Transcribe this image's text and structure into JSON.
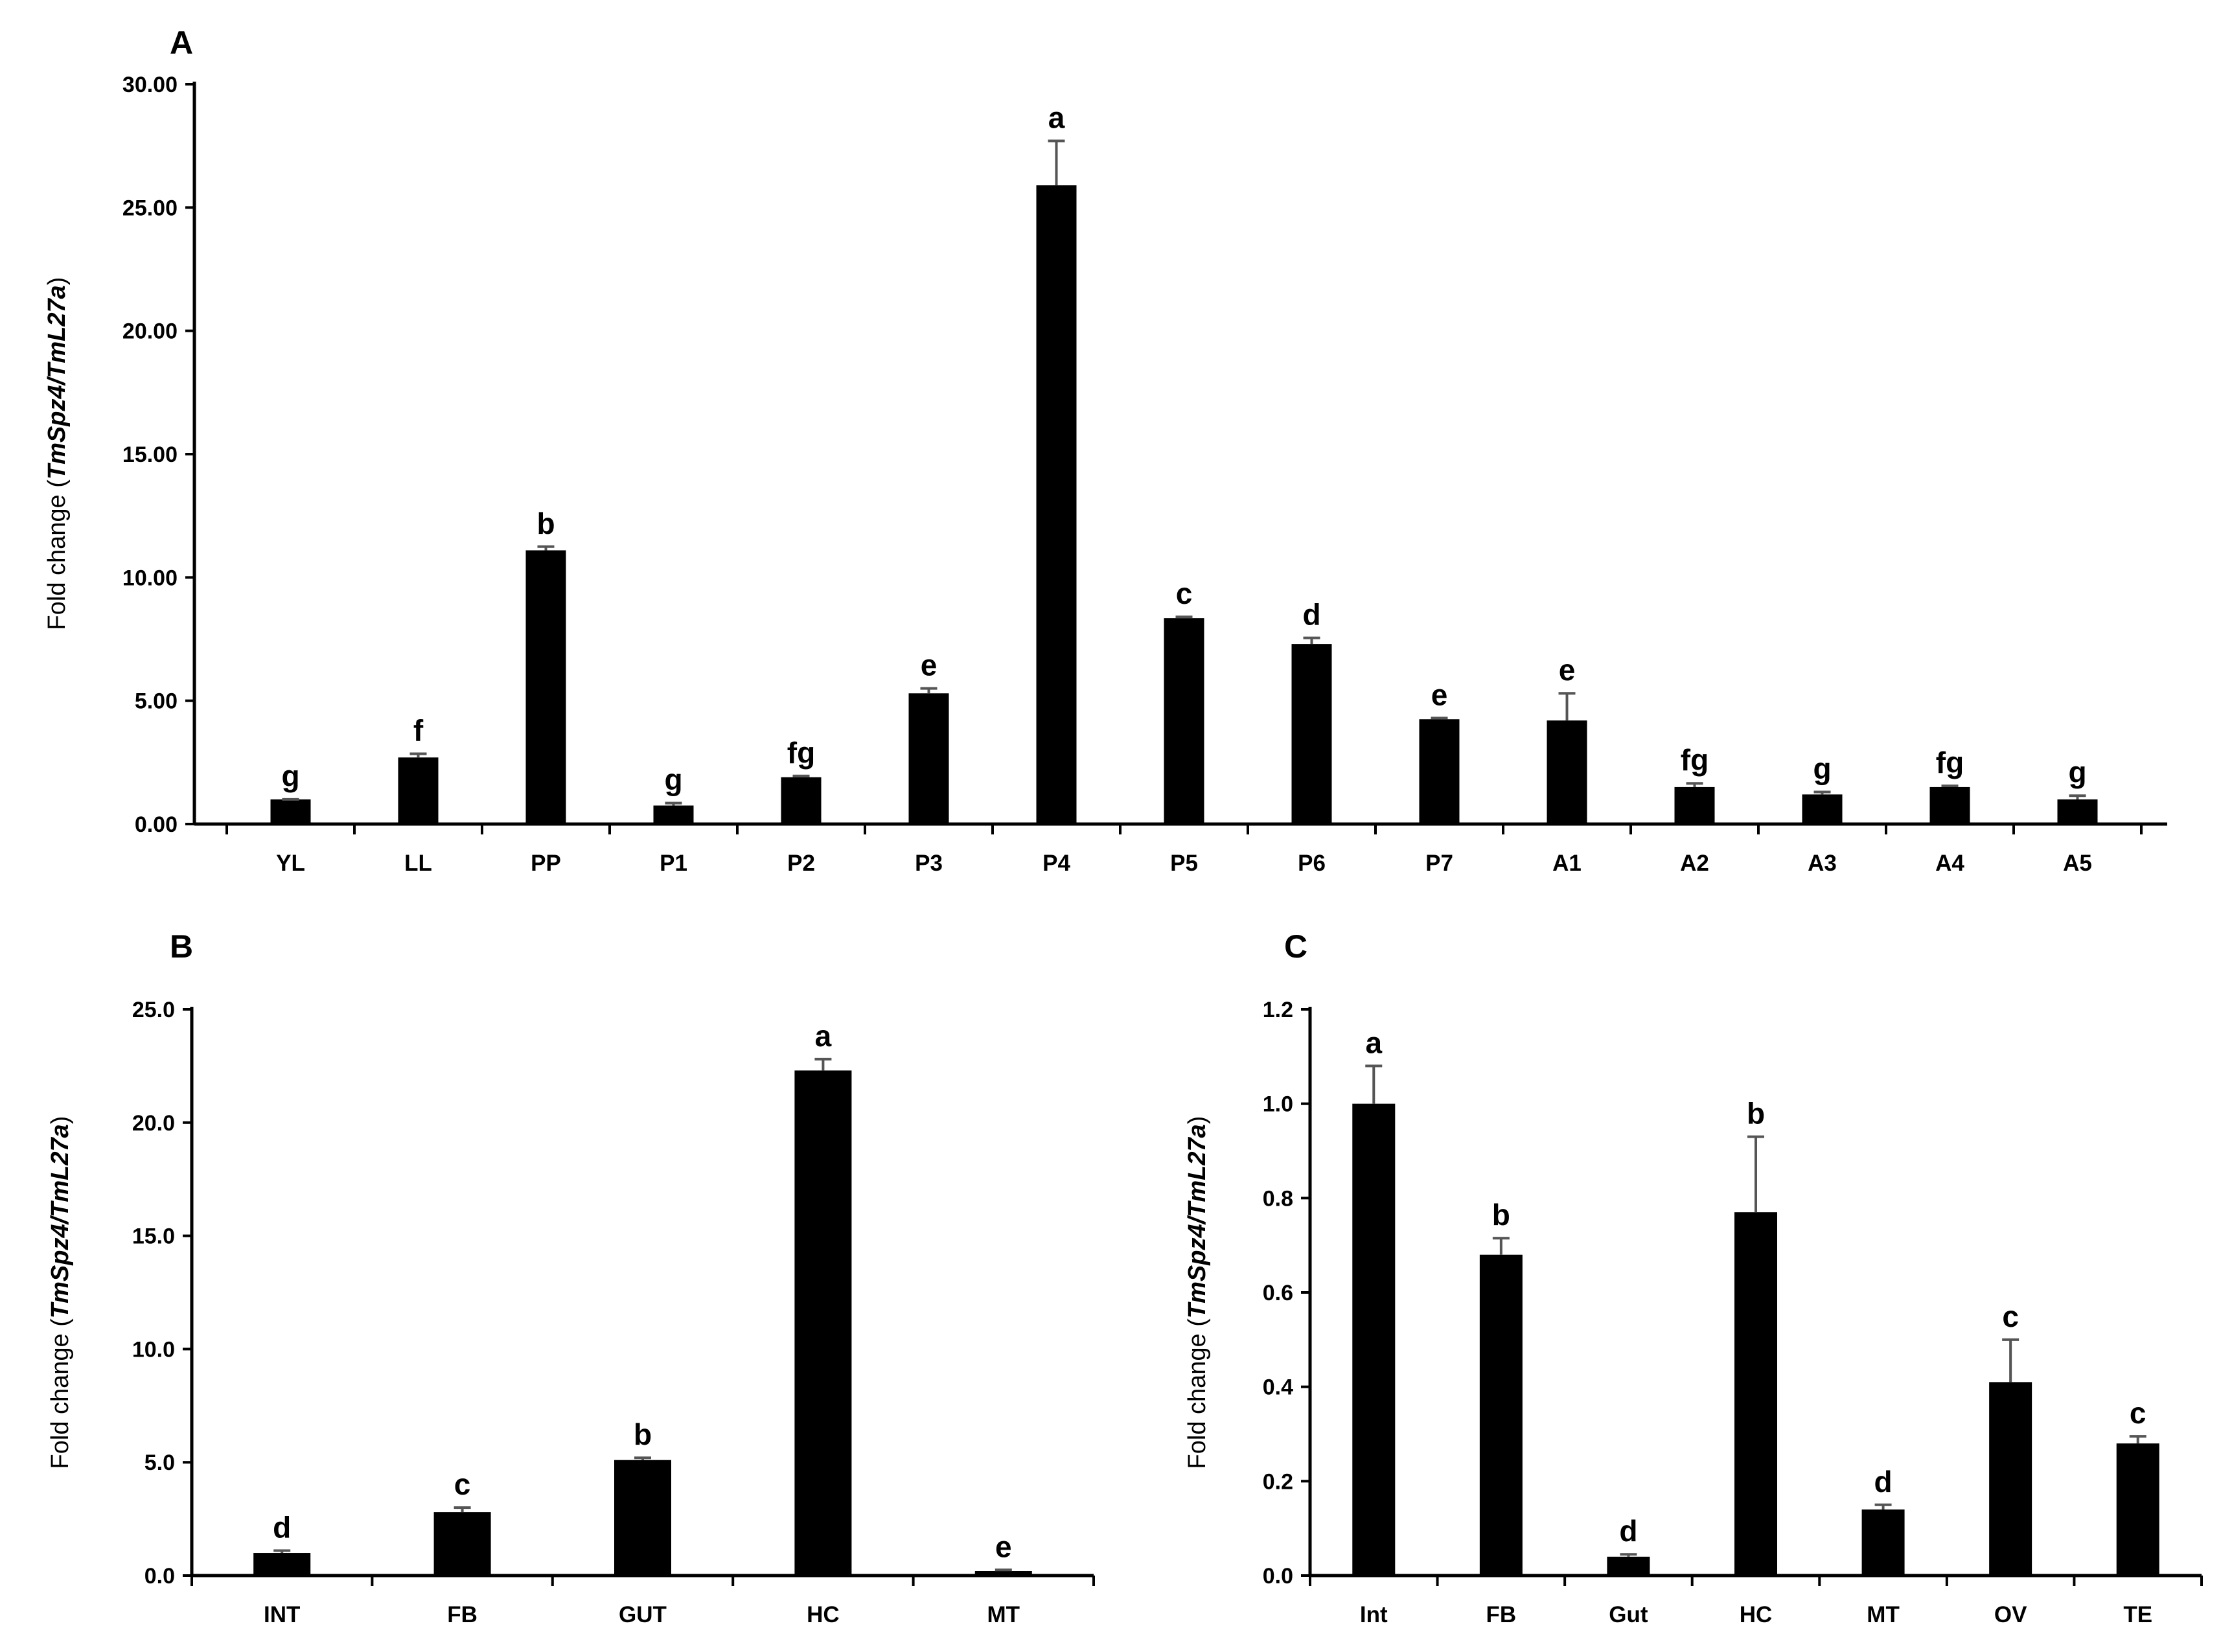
{
  "chart_data": [
    {
      "panel": "A",
      "type": "bar",
      "ylabel_prefix": "Fold change (",
      "ylabel_italic": "TmSpz4/TmL27a",
      "ylabel_suffix": ")",
      "ylim": [
        0,
        30
      ],
      "yticks": [
        "0.00",
        "5.00",
        "10.00",
        "15.00",
        "20.00",
        "25.00",
        "30.00"
      ],
      "categories": [
        "YL",
        "LL",
        "PP",
        "P1",
        "P2",
        "P3",
        "P4",
        "P5",
        "P6",
        "P7",
        "A1",
        "A2",
        "A3",
        "A4",
        "A5"
      ],
      "values": [
        1.0,
        2.7,
        11.1,
        0.75,
        1.9,
        5.3,
        25.9,
        8.35,
        7.3,
        4.25,
        4.2,
        1.5,
        1.2,
        1.5,
        1.0
      ],
      "errors": [
        0.0,
        0.15,
        0.15,
        0.1,
        0.05,
        0.2,
        1.8,
        0.05,
        0.25,
        0.05,
        1.1,
        0.15,
        0.1,
        0.05,
        0.15
      ],
      "significance": [
        "g",
        "f",
        "b",
        "g",
        "fg",
        "e",
        "a",
        "c",
        "d",
        "e",
        "e",
        "fg",
        "g",
        "fg",
        "g"
      ],
      "grid": false,
      "bar_color": "#000000"
    },
    {
      "panel": "B",
      "type": "bar",
      "ylabel_prefix": "Fold change (",
      "ylabel_italic": "TmSpz4/TmL27a",
      "ylabel_suffix": ")",
      "ylim": [
        0,
        25
      ],
      "yticks": [
        "0.0",
        "5.0",
        "10.0",
        "15.0",
        "20.0",
        "25.0"
      ],
      "categories": [
        "INT",
        "FB",
        "GUT",
        "HC",
        "MT"
      ],
      "values": [
        1.0,
        2.8,
        5.1,
        22.3,
        0.2
      ],
      "errors": [
        0.1,
        0.2,
        0.1,
        0.5,
        0.05
      ],
      "significance": [
        "d",
        "c",
        "b",
        "a",
        "e"
      ],
      "grid": false,
      "bar_color": "#000000"
    },
    {
      "panel": "C",
      "type": "bar",
      "ylabel_prefix": "Fold change (",
      "ylabel_italic": "TmSpz4/TmL27a",
      "ylabel_suffix": ")",
      "ylim": [
        0,
        1.2
      ],
      "yticks": [
        "0.0",
        "0.2",
        "0.4",
        "0.6",
        "0.8",
        "1.0",
        "1.2"
      ],
      "categories": [
        "Int",
        "FB",
        "Gut",
        "HC",
        "MT",
        "OV",
        "TE"
      ],
      "values": [
        1.0,
        0.68,
        0.04,
        0.77,
        0.14,
        0.41,
        0.28
      ],
      "errors": [
        0.08,
        0.035,
        0.005,
        0.16,
        0.01,
        0.09,
        0.015
      ],
      "significance": [
        "a",
        "b",
        "d",
        "b",
        "d",
        "c",
        "c"
      ],
      "grid": false,
      "bar_color": "#000000"
    }
  ]
}
